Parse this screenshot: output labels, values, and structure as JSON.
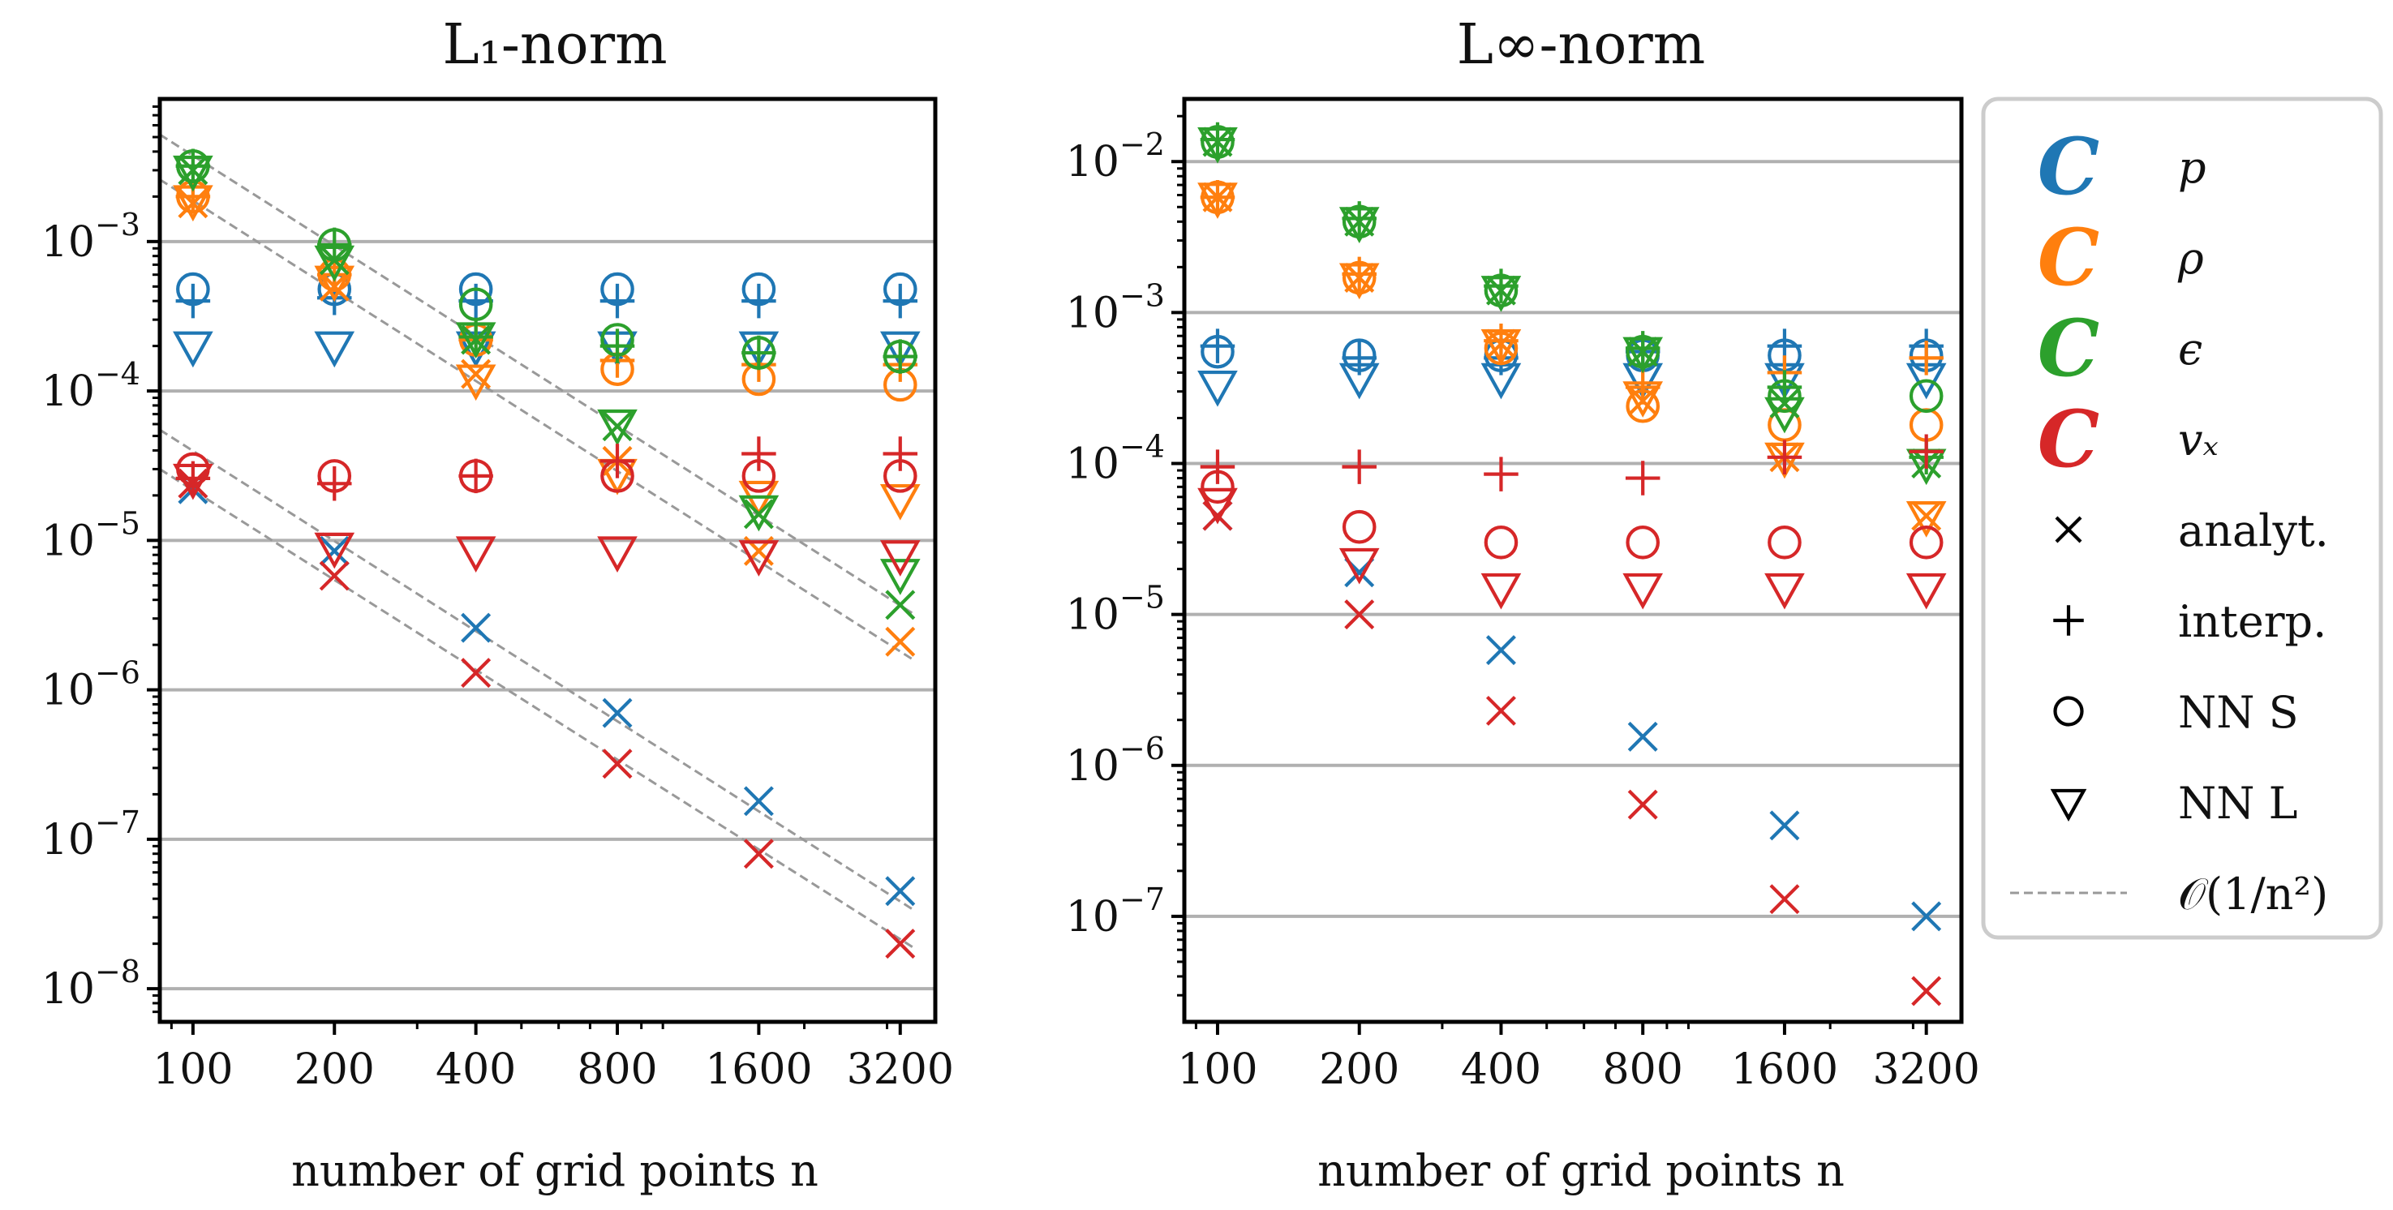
{
  "colors": {
    "p": "#1f77b4",
    "rho": "#ff7f0e",
    "eps": "#2ca02c",
    "vx": "#d62728",
    "grid": "#b0b0b0",
    "ref": "#999999",
    "black": "#000000"
  },
  "chart_data": [
    {
      "type": "scatter",
      "title": "L₁-norm",
      "xlabel": "number of grid points n",
      "ylabel": "",
      "x": [
        100,
        200,
        400,
        800,
        1600,
        3200
      ],
      "xticklabels": [
        "100",
        "200",
        "400",
        "800",
        "1600",
        "3200"
      ],
      "xlim": [
        85,
        3800
      ],
      "xscale": "log",
      "yscale": "log",
      "ylim": [
        6e-09,
        0.009
      ],
      "yticks": [
        {
          "base": "10",
          "exp": "−3"
        },
        {
          "base": "10",
          "exp": "−4"
        },
        {
          "base": "10",
          "exp": "−5"
        },
        {
          "base": "10",
          "exp": "−6"
        },
        {
          "base": "10",
          "exp": "−7"
        },
        {
          "base": "10",
          "exp": "−8"
        }
      ],
      "ytick_values": [
        0.001,
        0.0001,
        1e-05,
        1e-06,
        1e-07,
        1e-08
      ],
      "grid": "horizontal at major ticks",
      "series": [
        {
          "name": "p analyt.",
          "var": "p",
          "marker": "x",
          "values": [
            2.2e-05,
            8.5e-06,
            2.6e-06,
            7e-07,
            1.8e-07,
            4.5e-08
          ]
        },
        {
          "name": "p interp.",
          "var": "p",
          "marker": "+",
          "values": [
            0.0004,
            0.00042,
            0.0004,
            0.0004,
            0.0004,
            0.0004
          ]
        },
        {
          "name": "p NN S",
          "var": "p",
          "marker": "o",
          "values": [
            0.00048,
            0.00048,
            0.00048,
            0.00048,
            0.00048,
            0.00048
          ]
        },
        {
          "name": "p NN L",
          "var": "p",
          "marker": "v",
          "values": [
            0.0002,
            0.0002,
            0.0002,
            0.0002,
            0.0002,
            0.0002
          ]
        },
        {
          "name": "rho analyt.",
          "var": "rho",
          "marker": "x",
          "values": [
            0.0018,
            0.0005,
            0.00013,
            3.4e-05,
            8.5e-06,
            2.1e-06
          ]
        },
        {
          "name": "rho interp.",
          "var": "rho",
          "marker": "+",
          "values": [
            0.002,
            0.0006,
            0.00022,
            0.00016,
            0.00015,
            0.00015
          ]
        },
        {
          "name": "rho NN S",
          "var": "rho",
          "marker": "o",
          "values": [
            0.002,
            0.0006,
            0.00022,
            0.00014,
            0.00012,
            0.00011
          ]
        },
        {
          "name": "rho NN L",
          "var": "rho",
          "marker": "v",
          "values": [
            0.0019,
            0.00055,
            0.00012,
            2.8e-05,
            2e-05,
            1.9e-05
          ]
        },
        {
          "name": "eps analyt.",
          "var": "eps",
          "marker": "x",
          "values": [
            0.003,
            0.00075,
            0.00022,
            5.8e-05,
            1.5e-05,
            3.7e-06
          ]
        },
        {
          "name": "eps interp.",
          "var": "eps",
          "marker": "+",
          "values": [
            0.0032,
            0.00095,
            0.00023,
            0.0002,
            0.00018,
            0.00017
          ]
        },
        {
          "name": "eps NN S",
          "var": "eps",
          "marker": "o",
          "values": [
            0.0032,
            0.00095,
            0.00038,
            0.00022,
            0.00018,
            0.00017
          ]
        },
        {
          "name": "eps NN L",
          "var": "eps",
          "marker": "v",
          "values": [
            0.003,
            0.00075,
            0.00023,
            6e-05,
            1.6e-05,
            6e-06
          ]
        },
        {
          "name": "vx analyt.",
          "var": "vx",
          "marker": "x",
          "values": [
            2.4e-05,
            5.8e-06,
            1.3e-06,
            3.2e-07,
            8e-08,
            2e-08
          ]
        },
        {
          "name": "vx interp.",
          "var": "vx",
          "marker": "+",
          "values": [
            2.6e-05,
            2.4e-05,
            2.7e-05,
            3.4e-05,
            3.8e-05,
            3.8e-05
          ]
        },
        {
          "name": "vx NN S",
          "var": "vx",
          "marker": "o",
          "values": [
            3e-05,
            2.7e-05,
            2.7e-05,
            2.7e-05,
            2.7e-05,
            2.7e-05
          ]
        },
        {
          "name": "vx NN L",
          "var": "vx",
          "marker": "v",
          "values": [
            2.6e-05,
            9e-06,
            8.5e-06,
            8.5e-06,
            8e-06,
            8e-06
          ]
        }
      ],
      "reference_lines": [
        {
          "name": "O(1/n²)",
          "x": [
            85,
            3400
          ],
          "values": [
            0.0052,
            3.25e-06
          ]
        },
        {
          "name": "O(1/n²)",
          "x": [
            85,
            3400
          ],
          "values": [
            0.0026,
            1.6e-06
          ]
        },
        {
          "name": "O(1/n²)",
          "x": [
            85,
            3400
          ],
          "values": [
            5.5e-05,
            3.4e-08
          ]
        },
        {
          "name": "O(1/n²)",
          "x": [
            85,
            3400
          ],
          "values": [
            3e-05,
            1.9e-08
          ]
        }
      ]
    },
    {
      "type": "scatter",
      "title": "L∞-norm",
      "xlabel": "number of grid points n",
      "ylabel": "",
      "x": [
        100,
        200,
        400,
        800,
        1600,
        3200
      ],
      "xticklabels": [
        "100",
        "200",
        "400",
        "800",
        "1600",
        "3200"
      ],
      "xlim": [
        85,
        3800
      ],
      "xscale": "log",
      "yscale": "log",
      "ylim": [
        2e-08,
        0.026
      ],
      "yticks": [
        {
          "base": "10",
          "exp": "−2"
        },
        {
          "base": "10",
          "exp": "−3"
        },
        {
          "base": "10",
          "exp": "−4"
        },
        {
          "base": "10",
          "exp": "−5"
        },
        {
          "base": "10",
          "exp": "−6"
        },
        {
          "base": "10",
          "exp": "−7"
        }
      ],
      "ytick_values": [
        0.01,
        0.001,
        0.0001,
        1e-05,
        1e-06,
        1e-07
      ],
      "grid": "horizontal at major ticks",
      "series": [
        {
          "name": "p analyt.",
          "var": "p",
          "marker": "x",
          "values": [
            4.5e-05,
            1.9e-05,
            5.8e-06,
            1.55e-06,
            4e-07,
            1e-07
          ]
        },
        {
          "name": "p interp.",
          "var": "p",
          "marker": "+",
          "values": [
            0.0006,
            0.0005,
            0.0005,
            0.00055,
            0.0006,
            0.0006
          ]
        },
        {
          "name": "p NN S",
          "var": "p",
          "marker": "o",
          "values": [
            0.00055,
            0.00052,
            0.00052,
            0.00052,
            0.00052,
            0.00052
          ]
        },
        {
          "name": "p NN L",
          "var": "p",
          "marker": "v",
          "values": [
            0.00033,
            0.00037,
            0.00037,
            0.00037,
            0.00037,
            0.00037
          ]
        },
        {
          "name": "rho analyt.",
          "var": "rho",
          "marker": "x",
          "values": [
            0.0058,
            0.0017,
            0.00062,
            0.00026,
            0.00011,
            4.5e-05
          ]
        },
        {
          "name": "rho interp.",
          "var": "rho",
          "marker": "+",
          "values": [
            0.0058,
            0.0018,
            0.00065,
            0.00032,
            0.0004,
            0.0005
          ]
        },
        {
          "name": "rho NN S",
          "var": "rho",
          "marker": "o",
          "values": [
            0.0058,
            0.0017,
            0.00058,
            0.00024,
            0.00018,
            0.00018
          ]
        },
        {
          "name": "rho NN L",
          "var": "rho",
          "marker": "v",
          "values": [
            0.0058,
            0.0017,
            0.00062,
            0.00028,
            0.00011,
            4.5e-05
          ]
        },
        {
          "name": "eps analyt.",
          "var": "eps",
          "marker": "x",
          "values": [
            0.0135,
            0.004,
            0.0014,
            0.00055,
            0.00025,
            0.0001
          ]
        },
        {
          "name": "eps interp.",
          "var": "eps",
          "marker": "+",
          "values": [
            0.014,
            0.0042,
            0.0015,
            0.00058,
            0.00032,
            0.00011
          ]
        },
        {
          "name": "eps NN S",
          "var": "eps",
          "marker": "o",
          "values": [
            0.0135,
            0.004,
            0.0014,
            0.00055,
            0.00028,
            0.00028
          ]
        },
        {
          "name": "eps NN L",
          "var": "eps",
          "marker": "v",
          "values": [
            0.0135,
            0.004,
            0.0014,
            0.00055,
            0.00022,
            0.0001
          ]
        },
        {
          "name": "vx analyt.",
          "var": "vx",
          "marker": "x",
          "values": [
            4.5e-05,
            1e-05,
            2.3e-06,
            5.5e-07,
            1.3e-07,
            3.2e-08
          ]
        },
        {
          "name": "vx interp.",
          "var": "vx",
          "marker": "+",
          "values": [
            9.5e-05,
            9.5e-05,
            8.5e-05,
            8e-05,
            0.00011,
            0.00012
          ]
        },
        {
          "name": "vx NN S",
          "var": "vx",
          "marker": "o",
          "values": [
            7e-05,
            3.8e-05,
            3e-05,
            3e-05,
            3e-05,
            3e-05
          ]
        },
        {
          "name": "vx NN L",
          "var": "vx",
          "marker": "v",
          "values": [
            5.5e-05,
            2.2e-05,
            1.5e-05,
            1.5e-05,
            1.5e-05,
            1.5e-05
          ]
        }
      ],
      "reference_lines": []
    }
  ],
  "legend": {
    "placement": "outside right",
    "entries": [
      {
        "kind": "color",
        "var": "p",
        "glyph": "C",
        "label": "p"
      },
      {
        "kind": "color",
        "var": "rho",
        "glyph": "C",
        "label": "ρ"
      },
      {
        "kind": "color",
        "var": "eps",
        "glyph": "C",
        "label": "ϵ"
      },
      {
        "kind": "color",
        "var": "vx",
        "glyph": "C",
        "label": "vₓ"
      },
      {
        "kind": "marker",
        "marker": "x",
        "label": "analyt."
      },
      {
        "kind": "marker",
        "marker": "+",
        "label": "interp."
      },
      {
        "kind": "marker",
        "marker": "o",
        "label": "NN S"
      },
      {
        "kind": "marker",
        "marker": "v",
        "label": "NN L"
      },
      {
        "kind": "line",
        "label": "𝒪(1/n²)"
      }
    ]
  }
}
